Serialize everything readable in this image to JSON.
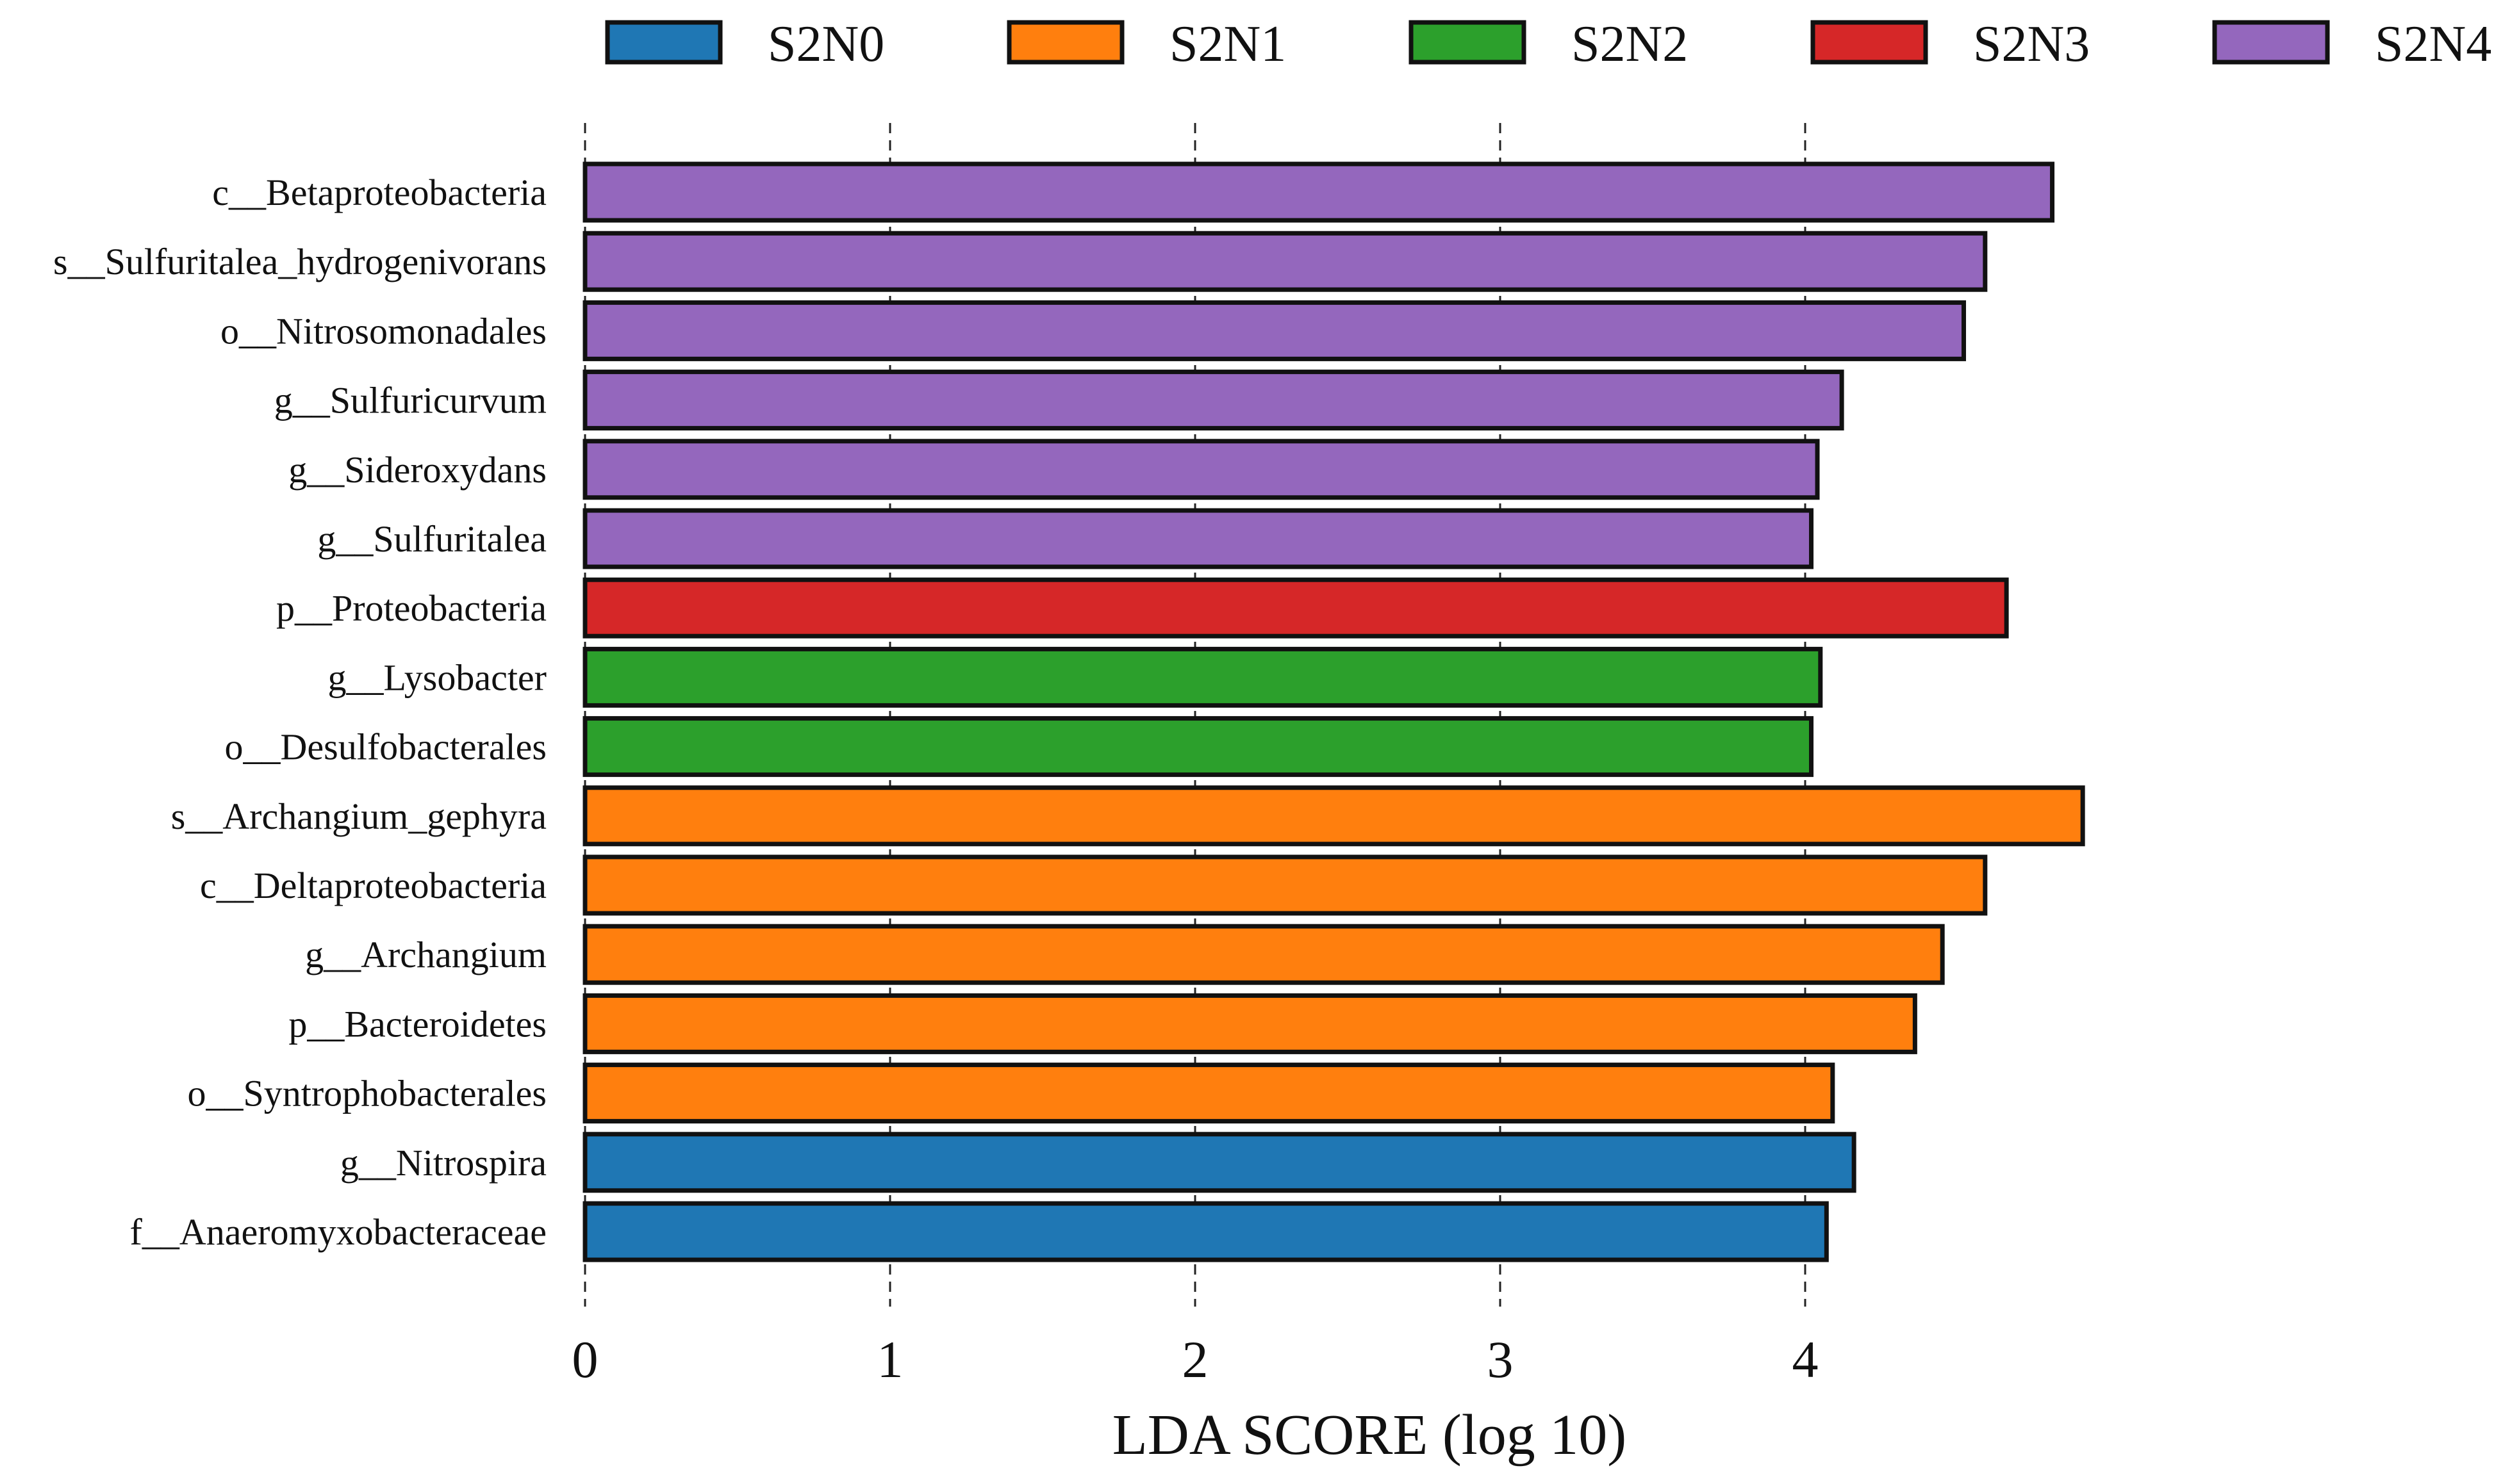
{
  "chart_data": {
    "type": "bar",
    "orientation": "horizontal",
    "title": "",
    "xlabel": "LDA SCORE (log 10)",
    "ylabel": "",
    "xlim": [
      0,
      5
    ],
    "xticks": [
      0,
      1,
      2,
      3,
      4
    ],
    "grid": "vertical dashed lines at ticks",
    "legend_position": "top",
    "groups": [
      {
        "name": "S2N0",
        "color": "#1f77b4"
      },
      {
        "name": "S2N1",
        "color": "#ff7f0e"
      },
      {
        "name": "S2N2",
        "color": "#2ca02c"
      },
      {
        "name": "S2N3",
        "color": "#d62728"
      },
      {
        "name": "S2N4",
        "color": "#9467bd"
      }
    ],
    "bars": [
      {
        "label": "c__Betaproteobacteria",
        "value": 4.81,
        "group": "S2N4"
      },
      {
        "label": "s__Sulfuritalea_hydrogenivorans",
        "value": 4.59,
        "group": "S2N4"
      },
      {
        "label": "o__Nitrosomonadales",
        "value": 4.52,
        "group": "S2N4"
      },
      {
        "label": "g__Sulfuricurvum",
        "value": 4.12,
        "group": "S2N4"
      },
      {
        "label": "g__Sideroxydans",
        "value": 4.04,
        "group": "S2N4"
      },
      {
        "label": "g__Sulfuritalea",
        "value": 4.02,
        "group": "S2N4"
      },
      {
        "label": "p__Proteobacteria",
        "value": 4.66,
        "group": "S2N3"
      },
      {
        "label": "g__Lysobacter",
        "value": 4.05,
        "group": "S2N2"
      },
      {
        "label": "o__Desulfobacterales",
        "value": 4.02,
        "group": "S2N2"
      },
      {
        "label": "s__Archangium_gephyra",
        "value": 4.91,
        "group": "S2N1"
      },
      {
        "label": "c__Deltaproteobacteria",
        "value": 4.59,
        "group": "S2N1"
      },
      {
        "label": "g__Archangium",
        "value": 4.45,
        "group": "S2N1"
      },
      {
        "label": "p__Bacteroidetes",
        "value": 4.36,
        "group": "S2N1"
      },
      {
        "label": "o__Syntrophobacterales",
        "value": 4.09,
        "group": "S2N1"
      },
      {
        "label": "g__Nitrospira",
        "value": 4.16,
        "group": "S2N0"
      },
      {
        "label": "f__Anaeromyxobacteraceae",
        "value": 4.07,
        "group": "S2N0"
      }
    ]
  }
}
